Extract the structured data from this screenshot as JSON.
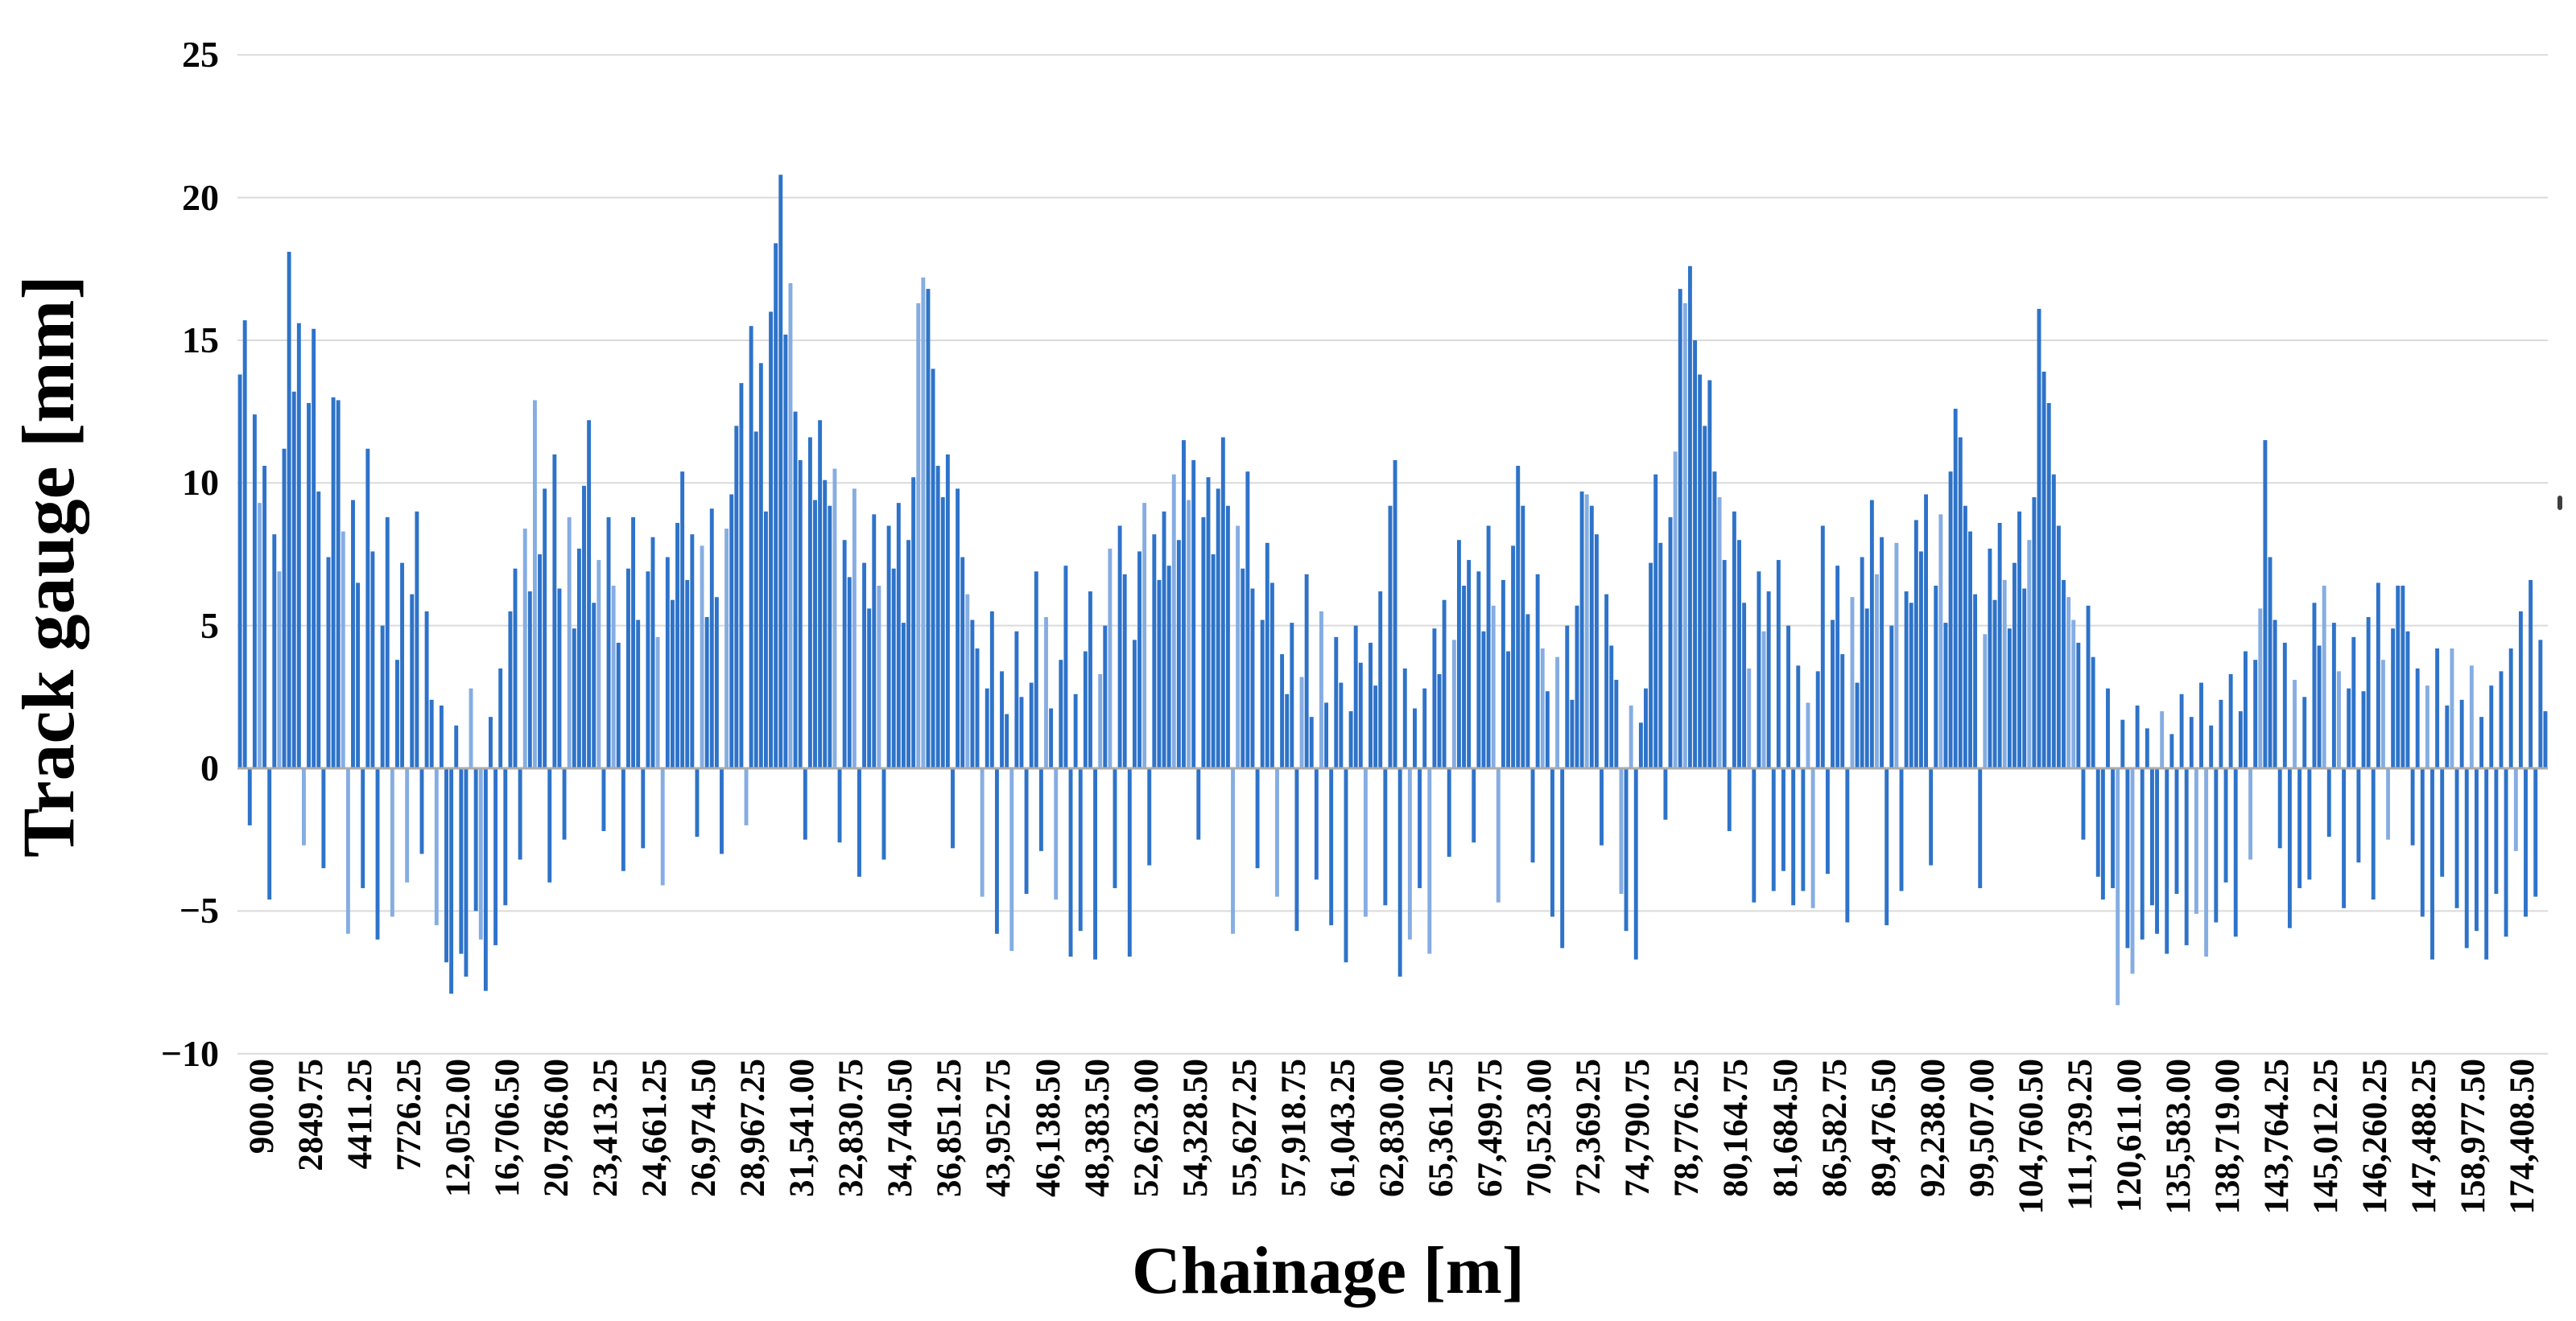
{
  "figure": {
    "kind": "track-gauge-bar-figure",
    "background": "#ffffff"
  },
  "chart_data": {
    "type": "bar",
    "title": "",
    "xlabel": "Chainage [m]",
    "ylabel": "Track gauge [mm]",
    "ylim": [
      -10,
      25
    ],
    "y_tick_labels": [
      "25",
      "20",
      "15",
      "10",
      "5",
      "0",
      "−5",
      "−10"
    ],
    "y_tick_values": [
      25,
      20,
      15,
      10,
      5,
      0,
      -5,
      -10
    ],
    "grid": "horizontal",
    "legend_position": "none",
    "bar_color": "#2E73C9",
    "bar_color_light": "#85ADE2",
    "gridline_color": "#DADADA",
    "zero_line_color": "#ABABAB",
    "categories": [
      "900.00",
      "2849.75",
      "4411.25",
      "7726.25",
      "12,052.00",
      "16,706.50",
      "20,786.00",
      "23,413.25",
      "24,661.25",
      "26,974.50",
      "28,967.25",
      "31,541.00",
      "32,830.75",
      "34,740.50",
      "36,851.25",
      "43,952.75",
      "46,138.50",
      "48,383.50",
      "52,623.00",
      "54,328.50",
      "55,627.25",
      "57,918.75",
      "61,043.25",
      "62,830.00",
      "65,361.25",
      "67,499.75",
      "70,523.00",
      "72,369.25",
      "74,790.75",
      "78,776.25",
      "80,164.75",
      "81,684.50",
      "86,582.75",
      "89,476.50",
      "92,238.00",
      "99,507.00",
      "104,760.50",
      "111,739.25",
      "120,611.00",
      "135,583.00",
      "138,719.00",
      "143,764.25",
      "145,012.25",
      "146,260.25",
      "147,488.25",
      "158,977.50",
      "174,408.50"
    ],
    "points_per_category": 10,
    "values": [
      13.8,
      15.7,
      -2.0,
      12.4,
      9.3,
      10.6,
      -4.6,
      8.2,
      6.9,
      11.2,
      18.1,
      13.2,
      15.6,
      -2.7,
      12.8,
      15.4,
      9.7,
      -3.5,
      7.4,
      13.0,
      12.9,
      8.3,
      -5.8,
      9.4,
      6.5,
      -4.2,
      11.2,
      7.6,
      -6.0,
      5.0,
      8.8,
      -5.2,
      3.8,
      7.2,
      -4.0,
      6.1,
      9.0,
      -3.0,
      5.5,
      2.4,
      -5.5,
      2.2,
      -6.8,
      -7.9,
      1.5,
      -6.5,
      -7.3,
      2.8,
      -5.0,
      -6.0,
      -7.8,
      1.8,
      -6.2,
      3.5,
      -4.8,
      5.5,
      7.0,
      -3.2,
      8.4,
      6.2,
      12.9,
      7.5,
      9.8,
      -4.0,
      11.0,
      6.3,
      -2.5,
      8.8,
      4.9,
      7.7,
      9.9,
      12.2,
      5.8,
      7.3,
      -2.2,
      8.8,
      6.4,
      4.4,
      -3.6,
      7.0,
      8.8,
      5.2,
      -2.8,
      6.9,
      8.1,
      4.6,
      -4.1,
      7.4,
      5.9,
      8.6,
      10.4,
      6.6,
      8.2,
      -2.4,
      7.8,
      5.3,
      9.1,
      6.0,
      -3.0,
      8.4,
      9.6,
      12.0,
      13.5,
      -2.0,
      15.5,
      11.8,
      14.2,
      9.0,
      16.0,
      18.4,
      20.8,
      15.2,
      17.0,
      12.5,
      10.8,
      -2.5,
      11.6,
      9.4,
      12.2,
      10.1,
      9.2,
      10.5,
      -2.6,
      8.0,
      6.7,
      9.8,
      -3.8,
      7.2,
      5.6,
      8.9,
      6.4,
      -3.2,
      8.5,
      7.0,
      9.3,
      5.1,
      8.0,
      10.2,
      16.3,
      17.2,
      16.8,
      14.0,
      10.6,
      9.5,
      11.0,
      -2.8,
      9.8,
      7.4,
      6.1,
      5.2,
      4.2,
      -4.5,
      2.8,
      5.5,
      -5.8,
      3.4,
      1.9,
      -6.4,
      4.8,
      2.5,
      -4.4,
      3.0,
      6.9,
      -2.9,
      5.3,
      2.1,
      -4.6,
      3.8,
      7.1,
      -6.6,
      2.6,
      -5.7,
      4.1,
      6.2,
      -6.7,
      3.3,
      5.0,
      7.7,
      -4.2,
      8.5,
      6.8,
      -6.6,
      4.5,
      7.6,
      9.3,
      -3.4,
      8.2,
      6.6,
      9.0,
      7.1,
      10.3,
      8.0,
      11.5,
      9.4,
      10.8,
      -2.5,
      8.8,
      10.2,
      7.5,
      9.8,
      11.6,
      9.2,
      -5.8,
      8.5,
      7.0,
      10.4,
      6.3,
      -3.5,
      5.2,
      7.9,
      6.5,
      -4.5,
      4.0,
      2.6,
      5.1,
      -5.7,
      3.2,
      6.8,
      1.8,
      -3.9,
      5.5,
      2.3,
      -5.5,
      4.6,
      3.0,
      -6.8,
      2.0,
      5.0,
      3.7,
      -5.2,
      4.4,
      2.9,
      6.2,
      -4.8,
      9.2,
      10.8,
      -7.3,
      3.5,
      -6.0,
      2.1,
      -4.2,
      2.8,
      -6.5,
      4.9,
      3.3,
      5.9,
      -3.1,
      4.5,
      8.0,
      6.4,
      7.3,
      -2.6,
      6.9,
      4.8,
      8.5,
      5.7,
      -4.7,
      6.6,
      4.1,
      7.8,
      10.6,
      9.2,
      5.4,
      -3.3,
      6.8,
      4.2,
      2.7,
      -5.2,
      3.9,
      -6.3,
      5.0,
      2.4,
      5.7,
      9.7,
      9.6,
      9.2,
      8.2,
      -2.7,
      6.1,
      4.3,
      3.1,
      -4.4,
      -5.7,
      2.2,
      -6.7,
      1.6,
      2.8,
      7.2,
      10.3,
      7.9,
      -1.8,
      8.8,
      11.1,
      16.8,
      16.3,
      17.6,
      15.0,
      13.8,
      12.0,
      13.6,
      10.4,
      9.5,
      7.3,
      -2.2,
      9.0,
      8.0,
      5.8,
      3.5,
      -4.7,
      6.9,
      4.8,
      6.2,
      -4.3,
      7.3,
      -3.6,
      5.0,
      -4.8,
      3.6,
      -4.3,
      2.3,
      -4.9,
      3.4,
      8.5,
      -3.7,
      5.2,
      7.1,
      4.0,
      -5.4,
      6.0,
      3.0,
      7.4,
      5.6,
      9.4,
      6.8,
      8.1,
      -5.5,
      5.0,
      7.9,
      -4.3,
      6.2,
      5.8,
      8.7,
      7.6,
      9.6,
      -3.4,
      6.4,
      8.9,
      5.1,
      10.4,
      12.6,
      11.6,
      9.2,
      8.3,
      6.1,
      -4.2,
      4.7,
      7.7,
      5.9,
      8.6,
      6.6,
      4.9,
      7.2,
      9.0,
      6.3,
      8.0,
      9.5,
      16.1,
      13.9,
      12.8,
      10.3,
      8.5,
      6.6,
      6.0,
      5.2,
      4.4,
      -2.5,
      5.7,
      3.9,
      -3.8,
      -4.6,
      2.8,
      -4.2,
      -8.3,
      1.7,
      -6.3,
      -7.2,
      2.2,
      -6.0,
      1.4,
      -4.8,
      -5.8,
      2.0,
      -6.5,
      1.2,
      -4.4,
      2.6,
      -6.2,
      1.8,
      -5.1,
      3.0,
      -6.6,
      1.5,
      -5.4,
      2.4,
      -4.0,
      3.3,
      -5.9,
      2.0,
      4.1,
      -3.2,
      3.8,
      5.6,
      11.5,
      7.4,
      5.2,
      -2.8,
      4.4,
      -5.6,
      3.1,
      -4.2,
      2.5,
      -3.9,
      5.8,
      4.3,
      6.4,
      -2.4,
      5.1,
      3.4,
      -4.9,
      2.8,
      4.6,
      -3.3,
      2.7,
      5.3,
      -4.6,
      6.5,
      3.8,
      -2.5,
      4.9,
      6.4,
      6.4,
      4.8,
      -2.7,
      3.5,
      -5.2,
      2.9,
      -6.7,
      4.2,
      -3.8,
      2.2,
      4.2,
      -4.9,
      2.4,
      -6.3,
      3.6,
      -5.7,
      1.8,
      -6.7,
      2.9,
      -4.4,
      3.4,
      -5.9,
      4.2,
      -2.9,
      5.5,
      -5.2,
      6.6,
      -4.5,
      4.5,
      2.0
    ]
  }
}
